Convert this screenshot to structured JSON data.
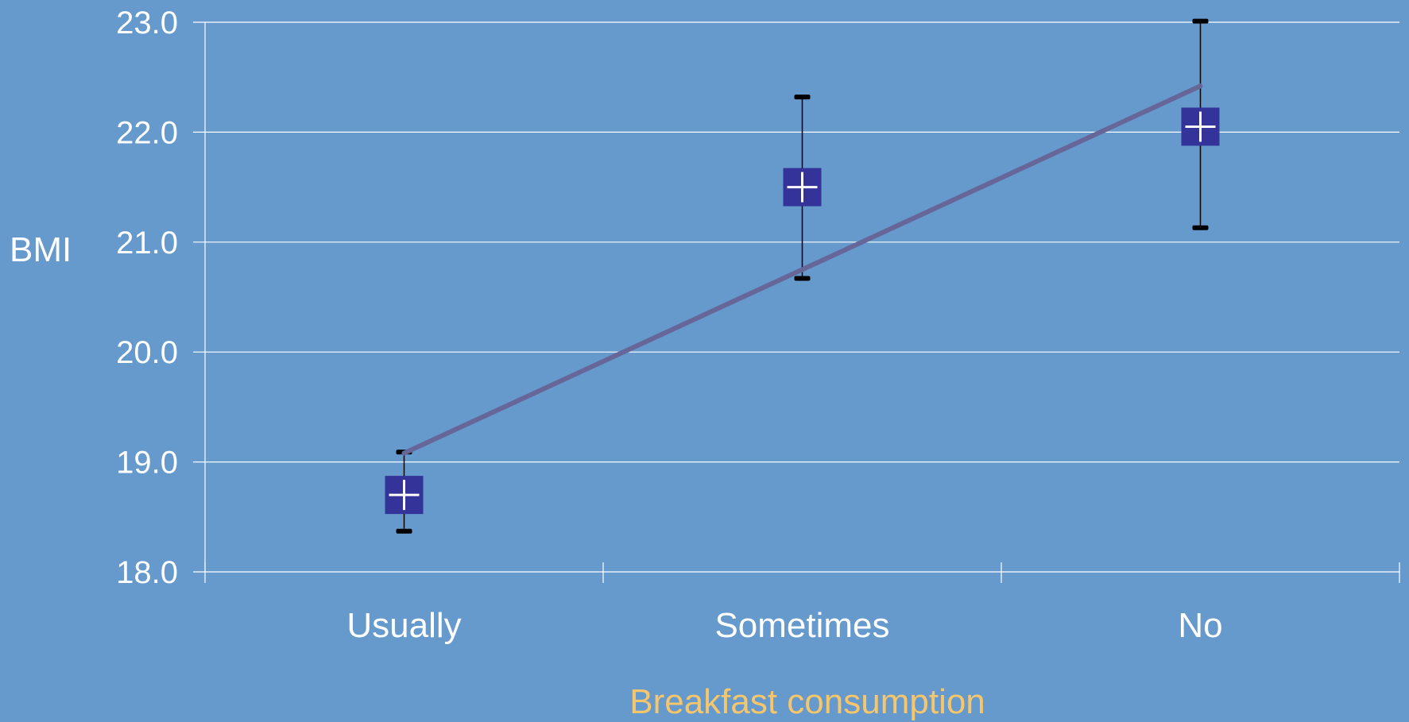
{
  "chart_data": {
    "type": "scatter",
    "title": "",
    "xlabel": "Breakfast consumption",
    "ylabel": "BMI",
    "ylim": [
      18.0,
      23.0
    ],
    "y_ticks": [
      "18.0",
      "19.0",
      "20.0",
      "21.0",
      "22.0",
      "23.0"
    ],
    "categories": [
      "Usually",
      "Sometimes",
      "No"
    ],
    "series": [
      {
        "marker": "square-with-cross",
        "values": [
          18.7,
          21.5,
          22.05
        ],
        "error_low": [
          18.37,
          20.67,
          21.13
        ],
        "error_high": [
          19.09,
          22.32,
          23.01
        ]
      }
    ],
    "trend_line": {
      "start": 19.08,
      "end": 22.42
    },
    "grid": true,
    "legend": "none",
    "colors": {
      "background": "#6699CC",
      "marker": "#333399",
      "marker_cross": "#FFFFFF",
      "trend_line": "#666699",
      "error_bar": "#000000",
      "grid": "#FFFFFF",
      "xlabel": "#F5C66B"
    }
  }
}
